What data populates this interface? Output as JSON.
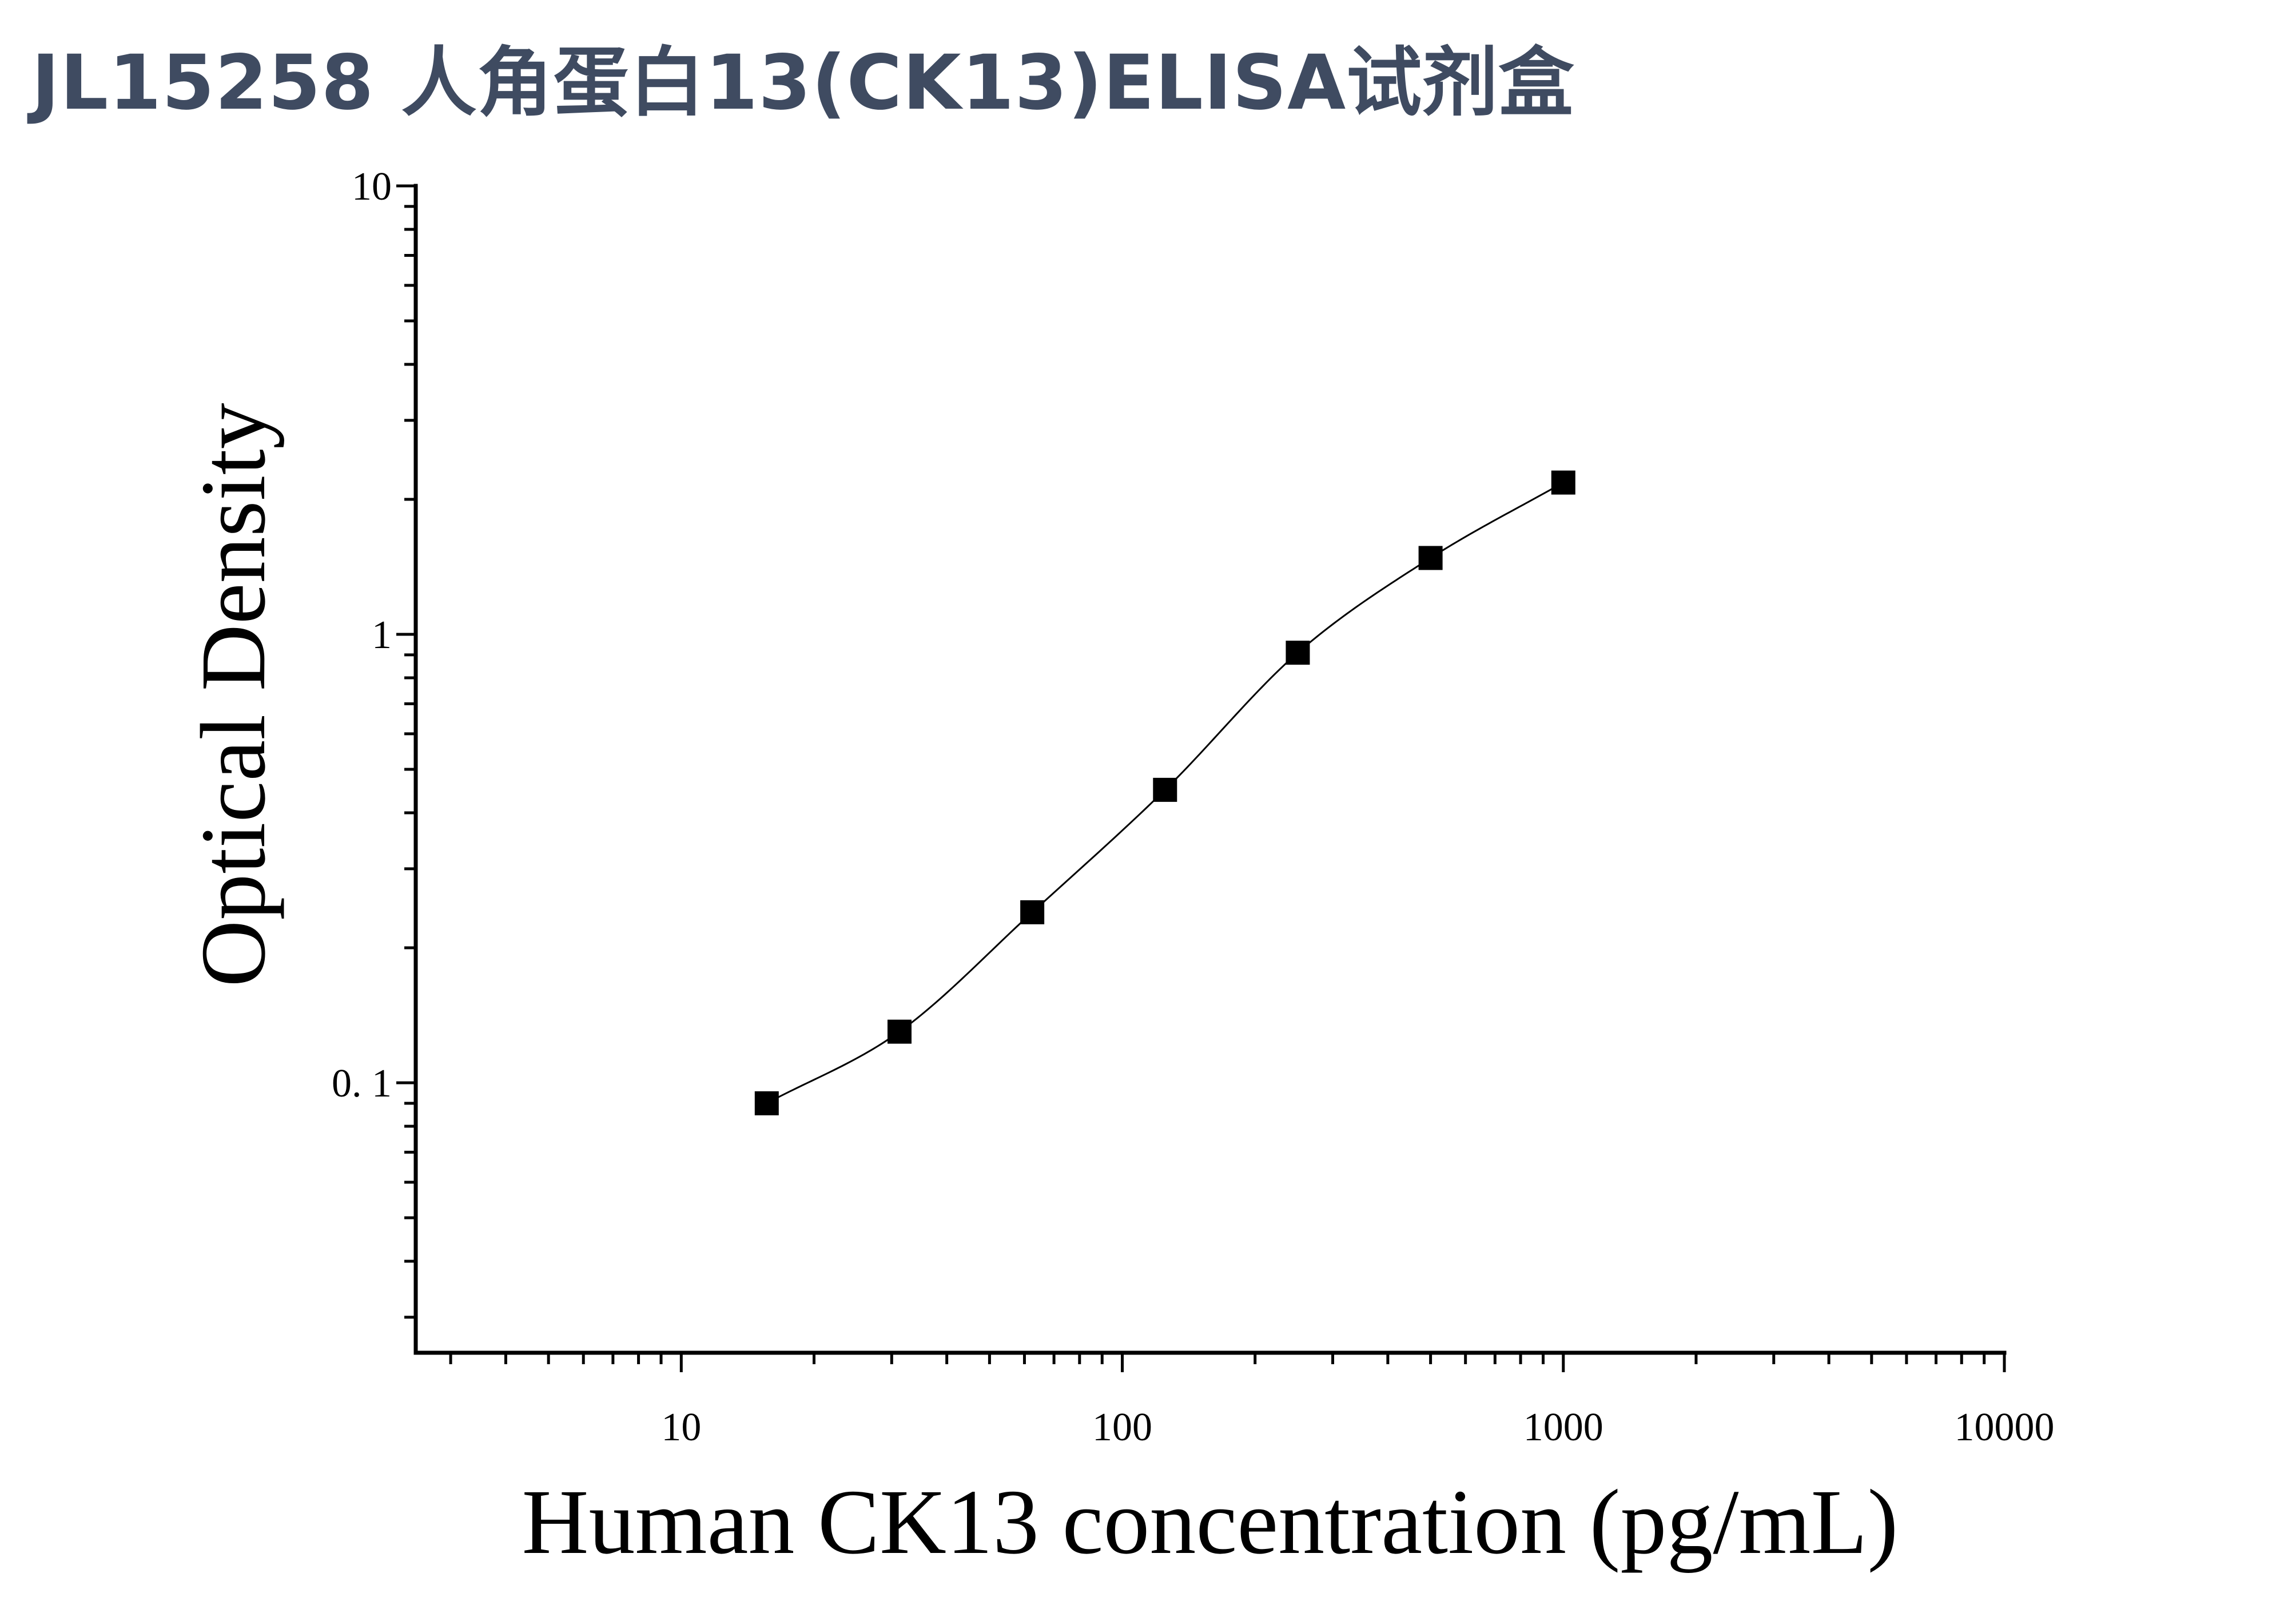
{
  "page": {
    "title": "JL15258 人角蛋白13(CK13)ELISA试剂盒"
  },
  "chart_data": {
    "type": "scatter",
    "title": "JL15258 人角蛋白13(CK13)ELISA试剂盒",
    "xlabel": "Human CK13 concentration (pg/mL)",
    "ylabel": "Optical Density",
    "xscale": "log",
    "yscale": "log",
    "xlim": [
      2.5,
      10000
    ],
    "ylim": [
      0.025,
      10
    ],
    "xticks": [
      10,
      100,
      1000,
      10000
    ],
    "xtick_labels": [
      "10",
      "100",
      "1000",
      "10000"
    ],
    "yticks": [
      0.1,
      1,
      10
    ],
    "ytick_labels": [
      "0. 1",
      "1",
      "10"
    ],
    "grid": false,
    "legend": "none",
    "marker": "square",
    "marker_color": "#000000",
    "line_color": "#000000",
    "series": [
      {
        "x": [
          15.625,
          31.25,
          62.5,
          125,
          250,
          500,
          1000
        ],
        "y": [
          0.09,
          0.13,
          0.24,
          0.45,
          0.91,
          1.48,
          2.18
        ],
        "fit_curve": true
      }
    ]
  }
}
